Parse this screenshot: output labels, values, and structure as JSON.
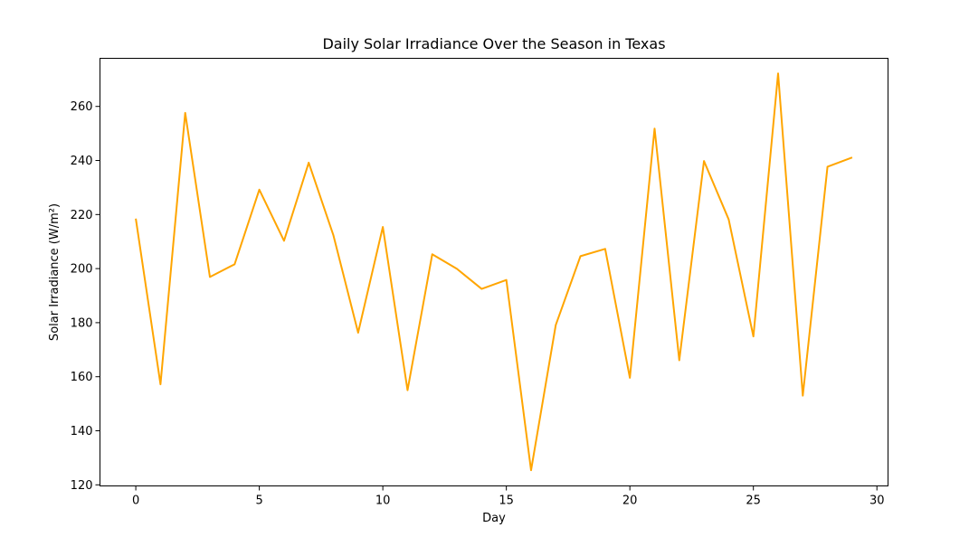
{
  "chart_data": {
    "type": "line",
    "title": "Daily Solar Irradiance Over the Season in Texas",
    "xlabel": "Day",
    "ylabel": "Solar Irradiance (W/m²)",
    "xlim": [
      -1.45,
      30.45
    ],
    "ylim": [
      119.6,
      277.8
    ],
    "xticks": [
      0,
      5,
      10,
      15,
      20,
      25,
      30
    ],
    "yticks": [
      120,
      140,
      160,
      180,
      200,
      220,
      240,
      260
    ],
    "grid": false,
    "series": [
      {
        "color": "#ffa500",
        "x": [
          0,
          1,
          2,
          3,
          4,
          5,
          6,
          7,
          8,
          9,
          10,
          11,
          12,
          13,
          14,
          15,
          16,
          17,
          18,
          19,
          20,
          21,
          22,
          23,
          24,
          25,
          26,
          27,
          28,
          29
        ],
        "values": [
          218.5,
          157.2,
          257.6,
          196.9,
          201.6,
          229.2,
          210.3,
          239.2,
          212.3,
          176.3,
          215.4,
          155.0,
          205.3,
          199.9,
          192.5,
          195.8,
          125.4,
          179.1,
          204.6,
          207.3,
          159.6,
          251.8,
          166.1,
          239.8,
          218.2,
          174.9,
          272.2,
          153.0,
          237.7,
          241.1
        ]
      }
    ]
  }
}
